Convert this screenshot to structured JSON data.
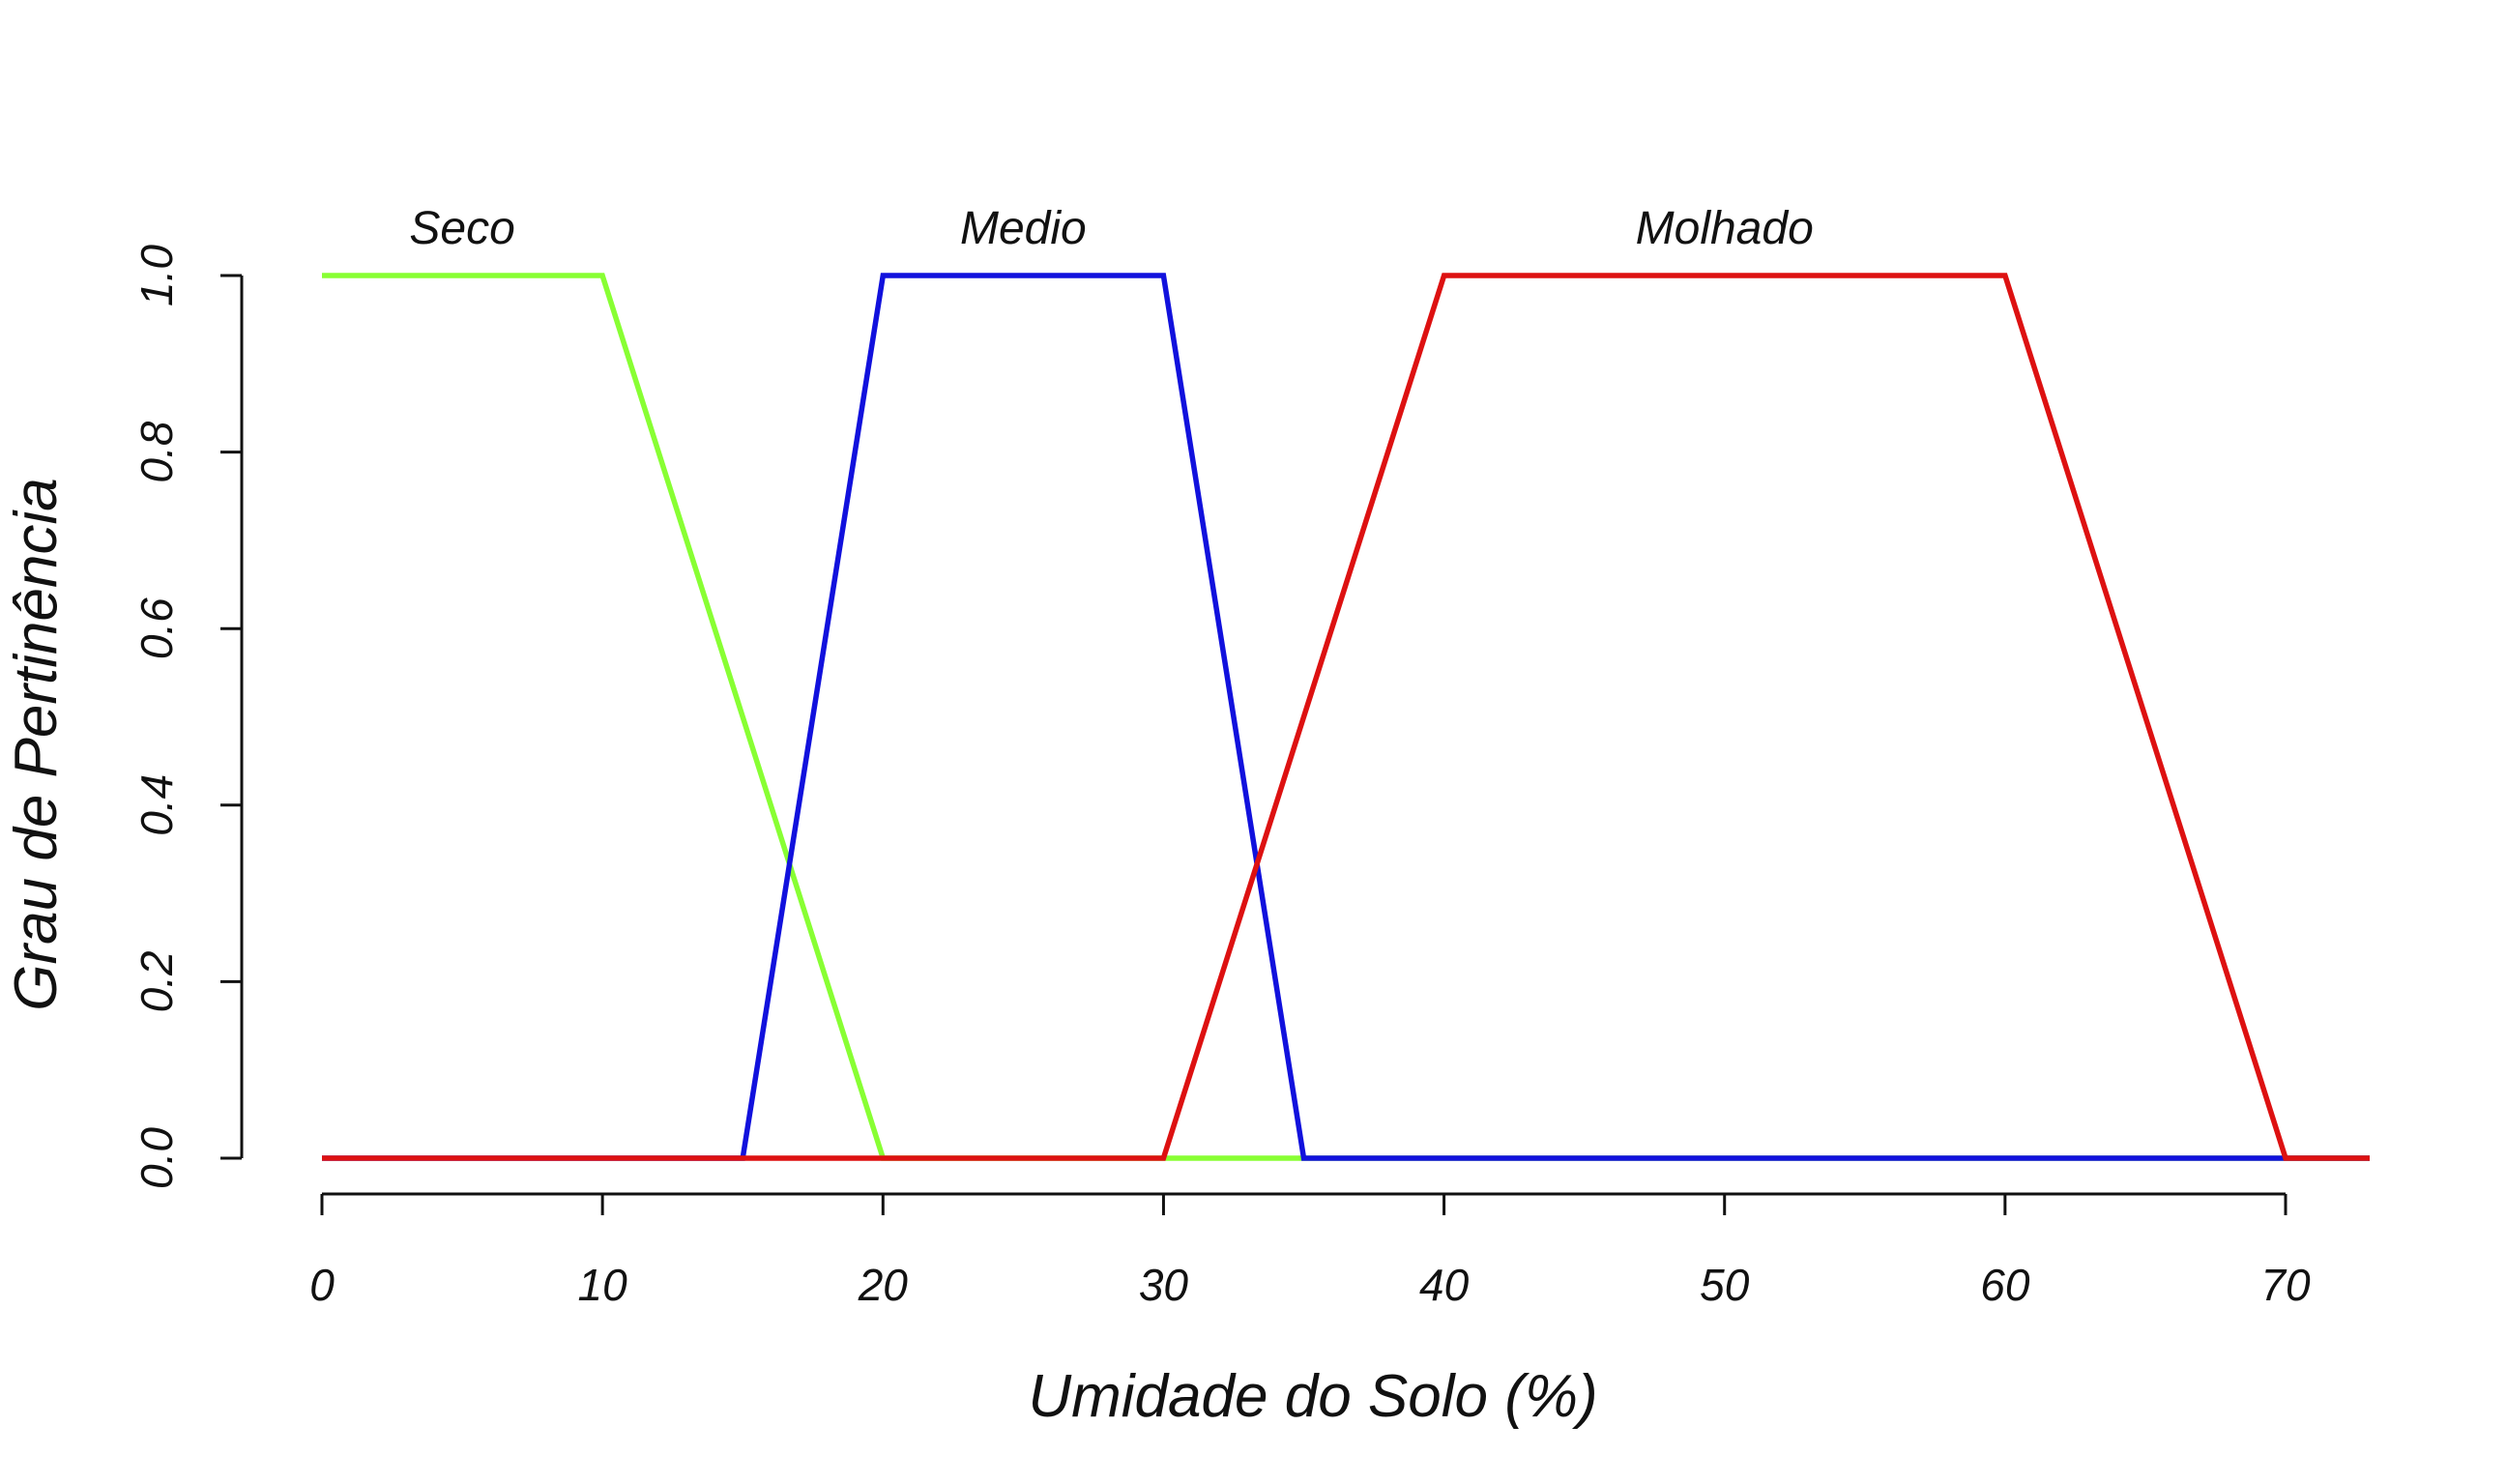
{
  "chart_data": {
    "type": "line",
    "title": "",
    "xlabel": "Umidade do Solo (%)",
    "ylabel": "Grau de Pertinência",
    "xlim": [
      0,
      73
    ],
    "ylim": [
      0,
      1
    ],
    "xticks": [
      0,
      10,
      20,
      30,
      40,
      50,
      60,
      70
    ],
    "xtick_labels": [
      "0",
      "10",
      "20",
      "30",
      "40",
      "50",
      "60",
      "70"
    ],
    "yticks": [
      0,
      0.2,
      0.4,
      0.6,
      0.8,
      1.0
    ],
    "ytick_labels": [
      "0.0",
      "0.2",
      "0.4",
      "0.6",
      "0.8",
      "1.0"
    ],
    "grid": false,
    "legend": "none",
    "series": [
      {
        "name": "Seco",
        "color": "#88ff33",
        "label_x": 5,
        "x": [
          0,
          10,
          20,
          35,
          73
        ],
        "y": [
          1,
          1,
          0,
          0,
          0
        ]
      },
      {
        "name": "Medio",
        "color": "#1111dd",
        "label_x": 25,
        "x": [
          0,
          15,
          20,
          30,
          35,
          73
        ],
        "y": [
          0,
          0,
          1,
          1,
          0,
          0
        ]
      },
      {
        "name": "Molhado",
        "color": "#dd1111",
        "label_x": 50,
        "x": [
          0,
          30,
          40,
          60,
          70,
          73
        ],
        "y": [
          0,
          0,
          1,
          1,
          0,
          0
        ]
      }
    ]
  }
}
